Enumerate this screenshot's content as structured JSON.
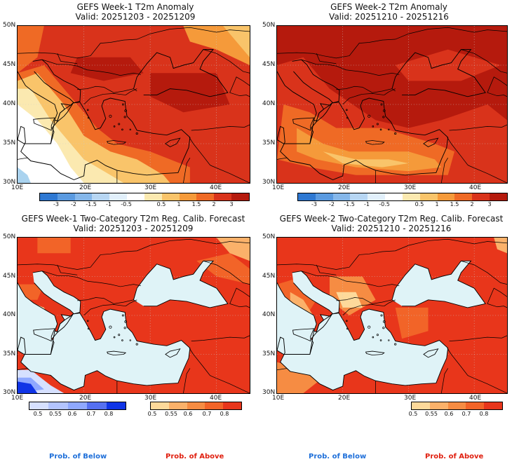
{
  "colors": {
    "sea": "#dff3f7",
    "hot3": "#b51a0d",
    "hot2": "#d9331b",
    "hot15": "#ef6a25",
    "hot1": "#f59a3a",
    "hot05": "#f9c46a",
    "warm0": "#fbe9b0",
    "white": "#ffffff",
    "cool": "#aad3ef",
    "above08": "#e8361b",
    "above07": "#f26428",
    "above06": "#f68c43",
    "above055": "#fbb16a",
    "above05": "#fdd99a",
    "below05": "#d6e0ff",
    "below06": "#8fa8ff",
    "below08": "#1034e6"
  },
  "panels": [
    {
      "title_line1": "GEFS Week-1 T2m Anomaly",
      "title_line2": "Valid: 20251203 - 20251209",
      "kind": "anomaly",
      "variant": 1,
      "lat_labels": [
        "50N",
        "45N",
        "40N",
        "35N",
        "30N"
      ],
      "lon_labels": [
        "10E",
        "20E",
        "30E",
        "40E"
      ],
      "colorbar_labels": [
        "-3",
        "-2",
        "-1.5",
        "-1",
        "-0.5",
        "0.5",
        "1",
        "1.5",
        "2",
        "3"
      ]
    },
    {
      "title_line1": "GEFS Week-2 T2m Anomaly",
      "title_line2": "Valid: 20251210 - 20251216",
      "kind": "anomaly",
      "variant": 2,
      "lat_labels": [
        "50N",
        "45N",
        "40N",
        "35N",
        "30N"
      ],
      "lon_labels": [
        "10E",
        "20E",
        "30E",
        "40E"
      ],
      "colorbar_labels": [
        "-3",
        "-2",
        "-1.5",
        "-1",
        "-0.5",
        "0.5",
        "1",
        "1.5",
        "2",
        "3"
      ]
    },
    {
      "title_line1": "GEFS Week-1 Two-Category T2m Reg. Calib. Forecast",
      "title_line2": "Valid: 20251203 - 20251209",
      "kind": "prob",
      "variant": 1,
      "lat_labels": [
        "50N",
        "45N",
        "40N",
        "35N",
        "30N"
      ],
      "lon_labels": [
        "10E",
        "20E",
        "30E",
        "40E"
      ],
      "below_labels": [
        "0.5",
        "0.55",
        "0.6",
        "0.7",
        "0.8"
      ],
      "above_labels": [
        "0.5",
        "0.55",
        "0.6",
        "0.7",
        "0.8"
      ],
      "below_caption": "Prob. of Below",
      "above_caption": "Prob. of Above"
    },
    {
      "title_line1": "GEFS Week-2 Two-Category T2m Reg. Calib. Forecast",
      "title_line2": "Valid: 20251210 - 20251216",
      "kind": "prob",
      "variant": 2,
      "lat_labels": [
        "50N",
        "45N",
        "40N",
        "35N",
        "30N"
      ],
      "lon_labels": [
        "10E",
        "20E",
        "30E",
        "40E"
      ],
      "above_labels": [
        "0.5",
        "0.55",
        "0.6",
        "0.7",
        "0.8"
      ],
      "below_caption": "Prob. of Below",
      "above_caption": "Prob. of Above"
    }
  ]
}
